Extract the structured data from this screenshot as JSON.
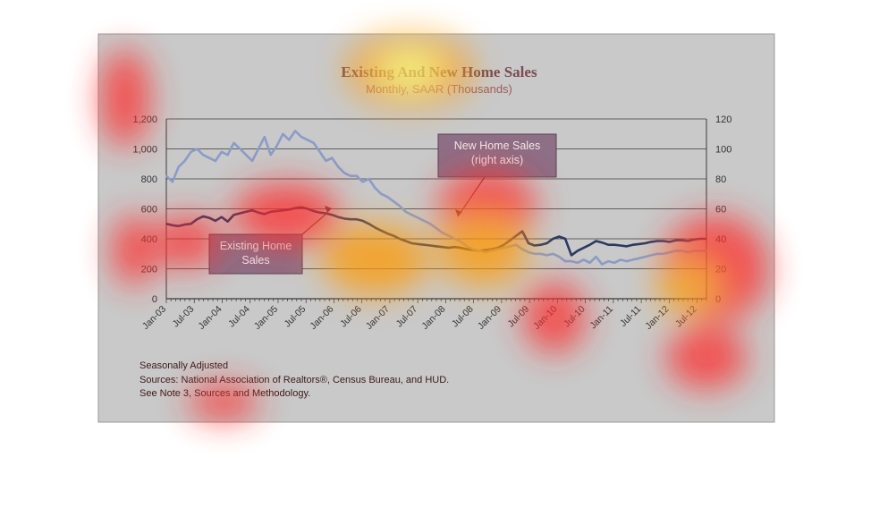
{
  "colors": {
    "panel": "#c9c9c9",
    "panel_border": "#9a9a9a",
    "existing_line": "#2b3a63",
    "new_line": "#8a9cc8",
    "gridline": "#3a3a3a",
    "callout_fill": "#8d6f86",
    "text": "#333333",
    "title_text": "#7b4a52"
  },
  "heatmap_colors": [
    "#ffff66",
    "#ff9900",
    "#ff2a2a"
  ],
  "chart_data": {
    "type": "line",
    "title": "Existing And New Home Sales",
    "subtitle": "Monthly, SAAR (Thousands)",
    "x_tick_labels": [
      "Jan-03",
      "Jul-03",
      "Jan-04",
      "Jul-04",
      "Jan-05",
      "Jul-05",
      "Jan-06",
      "Jul-06",
      "Jan-07",
      "Jul-07",
      "Jan-08",
      "Jul-08",
      "Jan-09",
      "Jul-09",
      "Jan-10",
      "Jul-10",
      "Jan-11",
      "Jul-11",
      "Jan-12",
      "Jul-12"
    ],
    "x_range": [
      "Jan-03",
      "Sep-12"
    ],
    "y_left": {
      "ticks": [
        "0",
        "200",
        "400",
        "600",
        "800",
        "1,000",
        "1,200"
      ],
      "ylim": [
        0,
        1200
      ]
    },
    "y_right": {
      "ticks": [
        "0",
        "20",
        "40",
        "60",
        "80",
        "100",
        "120"
      ],
      "ylim": [
        0,
        120
      ]
    },
    "grid": true,
    "series": [
      {
        "name": "Existing Home Sales",
        "axis": "left",
        "annotation": "Existing Home\nSales",
        "values": [
          500,
          490,
          485,
          495,
          500,
          530,
          550,
          540,
          520,
          545,
          515,
          560,
          570,
          580,
          590,
          575,
          565,
          580,
          585,
          590,
          595,
          605,
          610,
          600,
          585,
          575,
          570,
          560,
          545,
          535,
          530,
          530,
          520,
          500,
          475,
          455,
          435,
          420,
          400,
          385,
          370,
          365,
          360,
          355,
          350,
          345,
          340,
          345,
          340,
          330,
          325,
          320,
          325,
          330,
          340,
          360,
          390,
          420,
          450,
          370,
          355,
          360,
          370,
          400,
          415,
          400,
          290,
          320,
          340,
          360,
          385,
          375,
          360,
          360,
          355,
          350,
          360,
          365,
          370,
          380,
          385,
          385,
          380,
          390,
          390,
          385,
          395,
          400,
          400
        ]
      },
      {
        "name": "New Home Sales",
        "axis": "right",
        "annotation": "New Home Sales\n(right axis)",
        "values": [
          82,
          78,
          88,
          92,
          98,
          100,
          96,
          94,
          92,
          98,
          96,
          104,
          100,
          96,
          92,
          100,
          108,
          96,
          102,
          110,
          106,
          112,
          108,
          106,
          104,
          98,
          92,
          94,
          88,
          84,
          82,
          82,
          78,
          80,
          74,
          70,
          68,
          65,
          62,
          58,
          56,
          54,
          52,
          50,
          47,
          44,
          42,
          40,
          38,
          35,
          33,
          32,
          31,
          32,
          33,
          34,
          35,
          36,
          33,
          31,
          30,
          30,
          29,
          30,
          28,
          25,
          25,
          24,
          26,
          24,
          28,
          23,
          25,
          24,
          26,
          25,
          26,
          27,
          28,
          29,
          30,
          30,
          31,
          32,
          32,
          31,
          32,
          32,
          32
        ]
      }
    ]
  },
  "footnotes": [
    "Seasonally Adjusted",
    "Sources:  National Association of Realtors®, Census Bureau, and HUD.",
    "See Note 3, Sources and Methodology."
  ]
}
